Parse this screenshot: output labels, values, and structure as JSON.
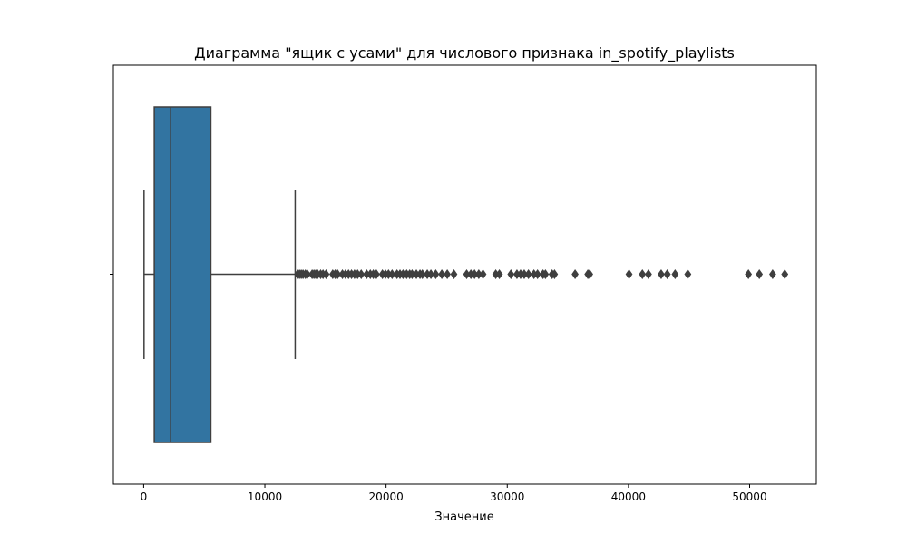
{
  "chart_data": {
    "type": "boxplot",
    "title": "Диаграмма \"ящик с усами\" для числового признака in_spotify_playlists",
    "xlabel": "Значение",
    "ylabel": "",
    "orientation": "horizontal",
    "grid": false,
    "legend": "none",
    "xlim": [
      -2500,
      55500
    ],
    "xticks": [
      0,
      10000,
      20000,
      30000,
      40000,
      50000
    ],
    "xtick_labels": [
      "0",
      "10000",
      "20000",
      "30000",
      "40000",
      "50000"
    ],
    "box": {
      "whisker_low": 31,
      "q1": 875,
      "median": 2224,
      "q3": 5542,
      "whisker_high": 12500
    },
    "outliers": [
      12700,
      12850,
      13000,
      13150,
      13350,
      13500,
      13900,
      14050,
      14200,
      14350,
      14600,
      14800,
      15050,
      15600,
      15800,
      16000,
      16400,
      16650,
      16900,
      17150,
      17400,
      17650,
      17950,
      18400,
      18700,
      18950,
      19200,
      19700,
      19950,
      20200,
      20500,
      20900,
      21150,
      21400,
      21700,
      21950,
      22150,
      22500,
      22800,
      23000,
      23400,
      23700,
      24100,
      24600,
      25050,
      25600,
      26650,
      27000,
      27300,
      27650,
      28000,
      29050,
      29350,
      30300,
      30800,
      31100,
      31400,
      31750,
      32200,
      32500,
      32950,
      33150,
      33700,
      33900,
      35600,
      36650,
      36800,
      40050,
      41150,
      41650,
      42700,
      43200,
      43850,
      44900,
      49900,
      50800,
      51900,
      52900
    ],
    "colors": {
      "box_fill": "#3274a1",
      "line": "#3f3f3f",
      "axis": "#000000"
    }
  }
}
